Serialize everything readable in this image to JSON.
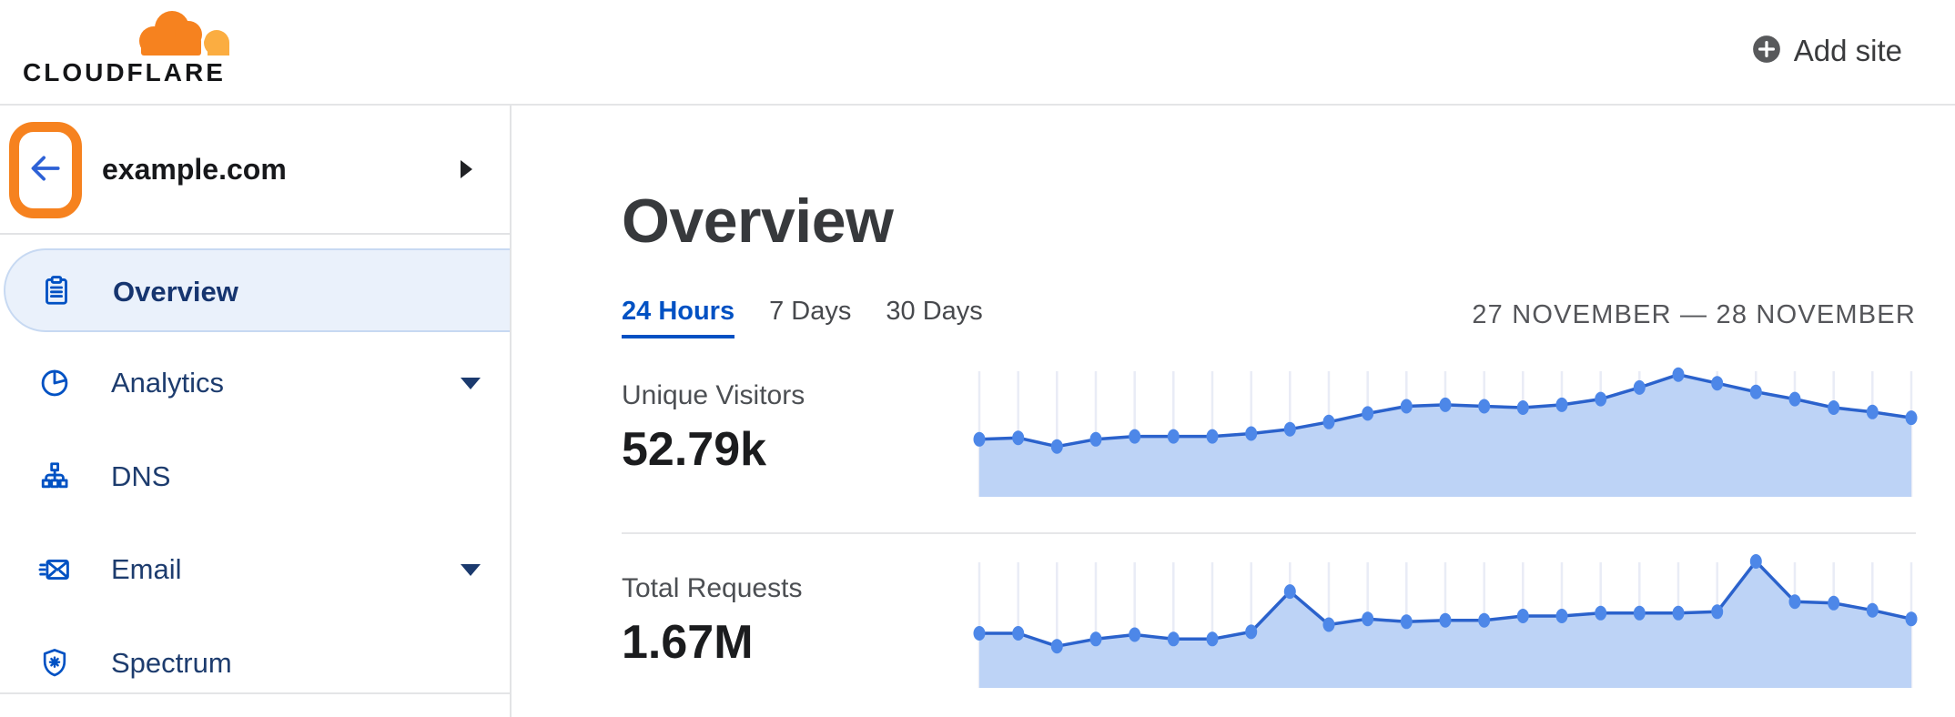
{
  "header": {
    "logo_wordmark": "CLOUDFLARE",
    "add_site_label": "Add site"
  },
  "sidebar": {
    "site_name": "example.com",
    "items": [
      {
        "label": "Overview",
        "icon": "clipboard-icon",
        "active": true,
        "has_submenu": false
      },
      {
        "label": "Analytics",
        "icon": "pie-chart-icon",
        "active": false,
        "has_submenu": true
      },
      {
        "label": "DNS",
        "icon": "dns-hierarchy-icon",
        "active": false,
        "has_submenu": false
      },
      {
        "label": "Email",
        "icon": "envelope-icon",
        "active": false,
        "has_submenu": true
      },
      {
        "label": "Spectrum",
        "icon": "shield-icon",
        "active": false,
        "has_submenu": false
      }
    ]
  },
  "main": {
    "title": "Overview",
    "tabs": [
      {
        "label": "24 Hours",
        "active": true
      },
      {
        "label": "7 Days",
        "active": false
      },
      {
        "label": "30 Days",
        "active": false
      }
    ],
    "date_range": "27 NOVEMBER — 28 NOVEMBER",
    "stats": [
      {
        "label": "Unique Visitors",
        "value": "52.79k"
      },
      {
        "label": "Total Requests",
        "value": "1.67M"
      }
    ]
  },
  "chart_data": [
    {
      "type": "area",
      "title": "Unique Visitors sparkline (24 Hours)",
      "summary_value": "52.79k",
      "x_axis": "25 evenly spaced time points, 27 Nov — 28 Nov (no tick labels shown)",
      "y_axis": "none shown; values are relative height percent of plot area",
      "values": [
        40,
        41,
        35,
        40,
        42,
        42,
        42,
        44,
        47,
        52,
        58,
        63,
        64,
        63,
        62,
        64,
        68,
        76,
        85,
        79,
        73,
        68,
        62,
        59,
        55
      ],
      "grid": "one vertical gridline per point",
      "legend": "none"
    },
    {
      "type": "area",
      "title": "Total Requests sparkline (24 Hours)",
      "summary_value": "1.67M",
      "x_axis": "25 evenly spaced time points, 27 Nov — 28 Nov (no tick labels shown)",
      "y_axis": "none shown; values are relative height percent of plot area",
      "values": [
        38,
        38,
        29,
        34,
        37,
        34,
        34,
        39,
        67,
        44,
        48,
        46,
        47,
        47,
        50,
        50,
        52,
        52,
        52,
        53,
        88,
        60,
        59,
        54,
        48
      ],
      "grid": "one vertical gridline per point",
      "legend": "none"
    }
  ],
  "colors": {
    "brand_orange": "#f6821f",
    "brand_orange_light": "#fbad41",
    "accent_blue": "#0051c3",
    "nav_text": "#1d3c6e",
    "active_item_bg": "#eaf1fb",
    "active_item_border": "#c7d9f2",
    "chart_line": "#2b62cc",
    "chart_dot": "#4d87e8",
    "chart_fill": "#bdd3f6",
    "chart_grid": "#e9ecf6",
    "highlight_annotation": "#f6821f"
  }
}
